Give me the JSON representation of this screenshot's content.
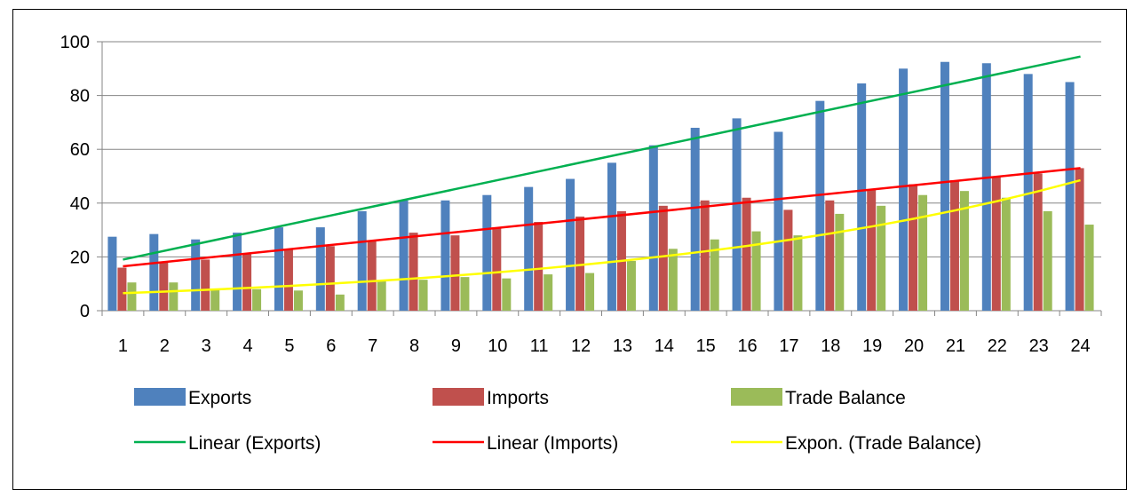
{
  "chart_data": {
    "type": "bar",
    "categories": [
      "1",
      "2",
      "3",
      "4",
      "5",
      "6",
      "7",
      "8",
      "9",
      "10",
      "11",
      "12",
      "13",
      "14",
      "15",
      "16",
      "17",
      "18",
      "19",
      "20",
      "21",
      "22",
      "23",
      "24"
    ],
    "series": [
      {
        "name": "Exports",
        "color": "#4F81BD",
        "values": [
          27.5,
          28.5,
          26.5,
          29,
          31,
          31,
          37,
          41,
          41,
          43,
          46,
          49,
          55,
          61.5,
          68,
          71.5,
          66.5,
          78,
          84.5,
          90,
          92.5,
          92,
          88,
          85
        ]
      },
      {
        "name": "Imports",
        "color": "#C0504D",
        "values": [
          16,
          18,
          19,
          21,
          23,
          24,
          26,
          29,
          28,
          31,
          33,
          35,
          37,
          39,
          41,
          42,
          37.5,
          41,
          45,
          47,
          48.5,
          50,
          51,
          53
        ]
      },
      {
        "name": "Trade Balance",
        "color": "#9BBB59",
        "values": [
          10.5,
          10.5,
          8,
          8,
          7.5,
          6,
          11,
          11.5,
          12.5,
          12,
          13.5,
          14,
          18.5,
          23,
          26.5,
          29.5,
          28,
          36,
          39,
          43,
          44.5,
          42,
          37,
          32
        ]
      }
    ],
    "trendlines": [
      {
        "name": "Linear (Exports)",
        "color": "#00B050",
        "type": "linear",
        "start": 19,
        "end": 94.5
      },
      {
        "name": "Linear (Imports)",
        "color": "#FF0000",
        "type": "linear",
        "start": 16.5,
        "end": 53
      },
      {
        "name": "Expon. (Trade Balance)",
        "color": "#FFFF00",
        "type": "exponential",
        "start": 6.5,
        "end": 48.5
      }
    ],
    "ylim": [
      0,
      100
    ],
    "yticks": [
      "0",
      "20",
      "40",
      "60",
      "80",
      "100"
    ],
    "title": "",
    "xlabel": "",
    "ylabel": "",
    "grid": true,
    "legend_position": "bottom"
  }
}
